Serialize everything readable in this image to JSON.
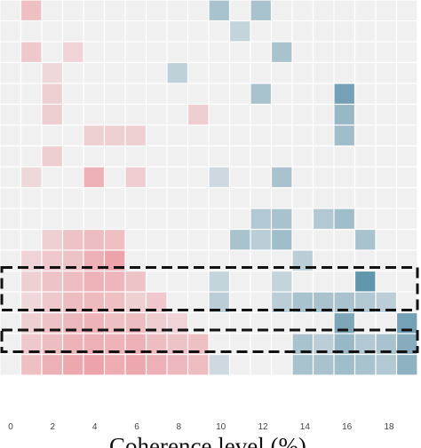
{
  "chart_data": {
    "type": "heatmap",
    "title": "",
    "xlabel": "Coherence level (%)",
    "ylabel": "",
    "x_tick_labels": [
      "0",
      "2",
      "4",
      "6",
      "8",
      "10",
      "12",
      "14",
      "16",
      "18"
    ],
    "x_range": [
      0,
      19.5
    ],
    "rows": 18,
    "columns": 20,
    "grid": true,
    "colors": {
      "background_cell": "#f0f0f0",
      "red": "#e8505e",
      "blue": "#3f7f9c",
      "highlight_box": "#111111"
    },
    "highlight_bands": [
      [
        13,
        14
      ],
      [
        16,
        16
      ]
    ],
    "red_cells": [
      [
        1,
        0,
        0.3
      ],
      [
        1,
        2,
        0.25
      ],
      [
        3,
        2,
        0.18
      ],
      [
        2,
        3,
        0.15
      ],
      [
        2,
        4,
        0.2
      ],
      [
        2,
        5,
        0.22
      ],
      [
        9,
        5,
        0.22
      ],
      [
        4,
        6,
        0.2
      ],
      [
        5,
        6,
        0.2
      ],
      [
        6,
        6,
        0.2
      ],
      [
        2,
        7,
        0.22
      ],
      [
        1,
        8,
        0.15
      ],
      [
        4,
        8,
        0.4
      ],
      [
        6,
        8,
        0.22
      ],
      [
        2,
        11,
        0.2
      ],
      [
        3,
        11,
        0.28
      ],
      [
        4,
        11,
        0.32
      ],
      [
        5,
        11,
        0.3
      ],
      [
        1,
        12,
        0.18
      ],
      [
        2,
        12,
        0.25
      ],
      [
        3,
        12,
        0.28
      ],
      [
        4,
        12,
        0.4
      ],
      [
        5,
        12,
        0.48
      ],
      [
        1,
        13,
        0.2
      ],
      [
        2,
        13,
        0.28
      ],
      [
        3,
        13,
        0.32
      ],
      [
        4,
        13,
        0.38
      ],
      [
        5,
        13,
        0.36
      ],
      [
        6,
        13,
        0.28
      ],
      [
        1,
        14,
        0.15
      ],
      [
        2,
        14,
        0.25
      ],
      [
        3,
        14,
        0.32
      ],
      [
        4,
        14,
        0.34
      ],
      [
        5,
        14,
        0.3
      ],
      [
        6,
        14,
        0.2
      ],
      [
        7,
        14,
        0.25
      ],
      [
        1,
        15,
        0.2
      ],
      [
        2,
        15,
        0.28
      ],
      [
        3,
        15,
        0.35
      ],
      [
        4,
        15,
        0.38
      ],
      [
        5,
        15,
        0.3
      ],
      [
        6,
        15,
        0.32
      ],
      [
        7,
        15,
        0.22
      ],
      [
        8,
        15,
        0.18
      ],
      [
        1,
        16,
        0.25
      ],
      [
        2,
        16,
        0.32
      ],
      [
        3,
        16,
        0.38
      ],
      [
        4,
        16,
        0.4
      ],
      [
        5,
        16,
        0.38
      ],
      [
        6,
        16,
        0.4
      ],
      [
        7,
        16,
        0.32
      ],
      [
        8,
        16,
        0.28
      ],
      [
        9,
        16,
        0.3
      ],
      [
        1,
        17,
        0.3
      ],
      [
        2,
        17,
        0.4
      ],
      [
        3,
        17,
        0.45
      ],
      [
        4,
        17,
        0.48
      ],
      [
        5,
        17,
        0.42
      ],
      [
        6,
        17,
        0.45
      ],
      [
        7,
        17,
        0.4
      ],
      [
        8,
        17,
        0.35
      ],
      [
        9,
        17,
        0.32
      ]
    ],
    "blue_cells": [
      [
        10,
        0,
        0.4
      ],
      [
        12,
        0,
        0.4
      ],
      [
        11,
        1,
        0.25
      ],
      [
        13,
        2,
        0.4
      ],
      [
        8,
        3,
        0.28
      ],
      [
        12,
        4,
        0.4
      ],
      [
        16,
        4,
        0.7
      ],
      [
        16,
        5,
        0.5
      ],
      [
        16,
        6,
        0.45
      ],
      [
        10,
        8,
        0.2
      ],
      [
        13,
        8,
        0.4
      ],
      [
        12,
        10,
        0.35
      ],
      [
        13,
        10,
        0.4
      ],
      [
        15,
        10,
        0.35
      ],
      [
        16,
        10,
        0.45
      ],
      [
        11,
        11,
        0.4
      ],
      [
        12,
        11,
        0.3
      ],
      [
        13,
        11,
        0.45
      ],
      [
        17,
        11,
        0.4
      ],
      [
        14,
        12,
        0.3
      ],
      [
        10,
        13,
        0.25
      ],
      [
        13,
        13,
        0.25
      ],
      [
        17,
        13,
        0.8
      ],
      [
        10,
        14,
        0.3
      ],
      [
        13,
        14,
        0.3
      ],
      [
        14,
        14,
        0.4
      ],
      [
        15,
        14,
        0.4
      ],
      [
        16,
        14,
        0.4
      ],
      [
        17,
        14,
        0.35
      ],
      [
        18,
        14,
        0.3
      ],
      [
        16,
        15,
        0.65
      ],
      [
        19,
        15,
        0.7
      ],
      [
        14,
        16,
        0.4
      ],
      [
        15,
        16,
        0.3
      ],
      [
        16,
        16,
        0.5
      ],
      [
        17,
        16,
        0.35
      ],
      [
        18,
        16,
        0.4
      ],
      [
        19,
        16,
        0.6
      ],
      [
        10,
        17,
        0.2
      ],
      [
        14,
        17,
        0.4
      ],
      [
        15,
        17,
        0.4
      ],
      [
        16,
        17,
        0.45
      ],
      [
        17,
        17,
        0.4
      ],
      [
        18,
        17,
        0.35
      ],
      [
        19,
        17,
        0.55
      ]
    ]
  }
}
